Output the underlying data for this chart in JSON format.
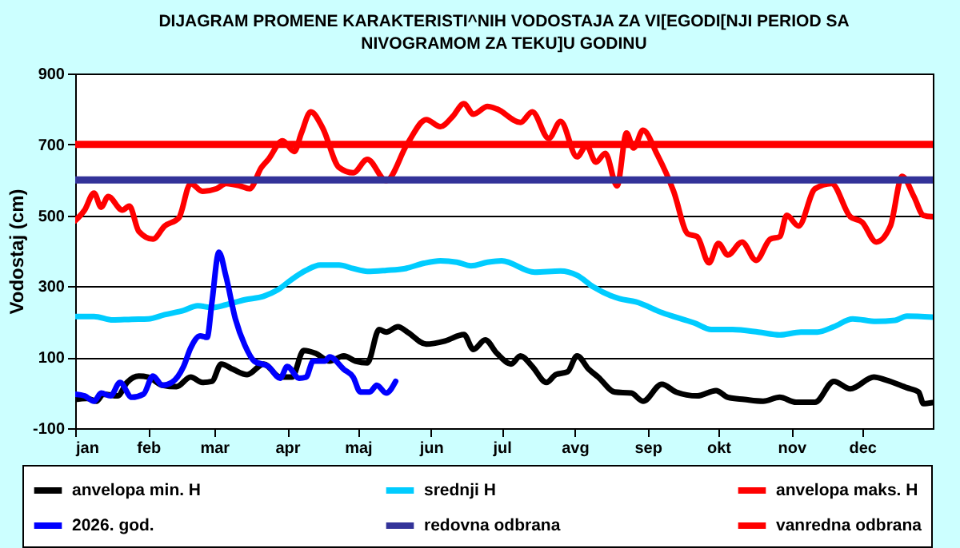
{
  "chart_data": {
    "type": "line",
    "title": "DIJAGRAM PROMENE  KARAKTERISTI^NIH  VODOSTAJA ZA VI[EGODI[NJI PERIOD  SA NIVOGRAMOM ZA TEKU]U  GODINU",
    "ylabel": "Vodostaj (cm)",
    "xlim": [
      "--01-01",
      "--12-31"
    ],
    "xticks": [
      {
        "value": "--01-01",
        "label": "jan"
      },
      {
        "value": "--02-01",
        "label": "feb"
      },
      {
        "value": "--03-01",
        "label": "mar"
      },
      {
        "value": "--04-01",
        "label": "apr"
      },
      {
        "value": "--05-01",
        "label": "maj"
      },
      {
        "value": "--06-01",
        "label": "jun"
      },
      {
        "value": "--07-01",
        "label": "jul"
      },
      {
        "value": "--08-01",
        "label": "avg"
      },
      {
        "value": "--09-01",
        "label": "sep"
      },
      {
        "value": "--10-01",
        "label": "okt"
      },
      {
        "value": "--11-01",
        "label": "nov"
      },
      {
        "value": "--12-01",
        "label": "dec"
      }
    ],
    "ylim": [
      -100,
      900
    ],
    "yticks": [
      -100,
      100,
      300,
      500,
      700,
      900
    ],
    "grid": "y",
    "legend": "bottom",
    "marker": "none",
    "line_style": "solid",
    "series": [
      {
        "name": "anvelopa min. H",
        "color": "#000000",
        "x": [
          "--01-01",
          "--01-06",
          "--01-10",
          "--01-13",
          "--01-19",
          "--01-23",
          "--01-28",
          "--02-01",
          "--02-07",
          "--02-13",
          "--02-19",
          "--02-24",
          "--02-28",
          "--03-04",
          "--03-09",
          "--03-15",
          "--03-22",
          "--03-29",
          "--04-03",
          "--04-08",
          "--04-13",
          "--04-19",
          "--04-25",
          "--04-30",
          "--05-05",
          "--05-10",
          "--05-13",
          "--05-18",
          "--05-22",
          "--05-30",
          "--06-07",
          "--06-15",
          "--06-19",
          "--06-24",
          "--06-29",
          "--07-05",
          "--07-09",
          "--07-14",
          "--07-20",
          "--07-24",
          "--07-29",
          "--08-02",
          "--08-07",
          "--08-11",
          "--08-18",
          "--08-25",
          "--08-30",
          "--09-07",
          "--09-13",
          "--09-22",
          "--09-30",
          "--10-05",
          "--10-12",
          "--10-20",
          "--10-27",
          "--11-03",
          "--11-11",
          "--11-19",
          "--11-26",
          "--12-06",
          "--12-11",
          "--12-20",
          "--12-25",
          "--12-27",
          "--12-31"
        ],
        "values": [
          -19,
          -16,
          -24,
          -4,
          -9,
          29,
          47,
          44,
          21,
          17,
          44,
          29,
          32,
          81,
          66,
          51,
          81,
          44,
          44,
          119,
          111,
          89,
          104,
          89,
          84,
          178,
          171,
          186,
          171,
          137,
          146,
          164,
          122,
          149,
          111,
          81,
          104,
          74,
          29,
          51,
          59,
          104,
          66,
          44,
          2,
          -1,
          -24,
          24,
          2,
          -9,
          6,
          -13,
          -19,
          -24,
          -13,
          -27,
          -27,
          32,
          11,
          44,
          36,
          14,
          2,
          -31,
          -28
        ]
      },
      {
        "name": "srednji H",
        "color": "#00ccff",
        "x": [
          "--01-01",
          "--01-09",
          "--01-17",
          "--01-25",
          "--02-01",
          "--02-08",
          "--02-16",
          "--02-22",
          "--02-28",
          "--03-06",
          "--03-14",
          "--03-22",
          "--03-28",
          "--04-03",
          "--04-09",
          "--04-15",
          "--04-23",
          "--04-29",
          "--05-05",
          "--05-13",
          "--05-21",
          "--05-29",
          "--06-05",
          "--06-12",
          "--06-18",
          "--06-25",
          "--07-01",
          "--07-15",
          "--07-26",
          "--08-02",
          "--08-09",
          "--08-20",
          "--08-27",
          "--09-07",
          "--09-21",
          "--09-28",
          "--10-07",
          "--10-18",
          "--10-27",
          "--11-05",
          "--11-12",
          "--11-19",
          "--11-27",
          "--12-07",
          "--12-15",
          "--12-20",
          "--12-31"
        ],
        "values": [
          215,
          215,
          205,
          207,
          208,
          220,
          232,
          245,
          240,
          248,
          262,
          272,
          290,
          320,
          345,
          360,
          360,
          350,
          342,
          345,
          350,
          365,
          372,
          368,
          358,
          368,
          372,
          340,
          343,
          331,
          298,
          265,
          256,
          226,
          196,
          178,
          178,
          171,
          163,
          171,
          171,
          186,
          208,
          201,
          204,
          216,
          213
        ]
      },
      {
        "name": "anvelopa maks. H",
        "color": "#ff0000",
        "x": [
          "--01-01",
          "--01-05",
          "--01-09",
          "--01-12",
          "--01-15",
          "--01-21",
          "--01-24",
          "--01-28",
          "--02-03",
          "--02-08",
          "--02-14",
          "--02-19",
          "--02-24",
          "--03-02",
          "--03-06",
          "--03-12",
          "--03-16",
          "--03-21",
          "--03-24",
          "--03-30",
          "--04-04",
          "--04-07",
          "--04-11",
          "--04-16",
          "--04-23",
          "--04-29",
          "--05-05",
          "--05-13",
          "--05-22",
          "--05-30",
          "--06-05",
          "--06-10",
          "--06-15",
          "--06-19",
          "--06-25",
          "--06-29",
          "--07-09",
          "--07-14",
          "--07-21",
          "--07-26",
          "--08-02",
          "--08-06",
          "--08-10",
          "--08-14",
          "--08-19",
          "--08-23",
          "--08-26",
          "--08-30",
          "--09-05",
          "--09-12",
          "--09-18",
          "--09-22",
          "--09-27",
          "--10-01",
          "--10-05",
          "--10-11",
          "--10-17",
          "--10-23",
          "--10-27",
          "--10-30",
          "--11-04",
          "--11-11",
          "--11-18",
          "--11-26",
          "--12-01",
          "--12-07",
          "--12-13",
          "--12-18",
          "--12-23",
          "--12-27",
          "--12-31"
        ],
        "values": [
          485,
          515,
          563,
          523,
          553,
          515,
          526,
          455,
          433,
          470,
          493,
          590,
          568,
          575,
          590,
          583,
          575,
          635,
          658,
          710,
          680,
          732,
          792,
          747,
          635,
          620,
          658,
          598,
          702,
          770,
          750,
          777,
          815,
          785,
          807,
          800,
          762,
          792,
          717,
          765,
          665,
          697,
          650,
          675,
          583,
          732,
          690,
          740,
          672,
          568,
          448,
          440,
          366,
          421,
          388,
          425,
          373,
          433,
          440,
          500,
          470,
          575,
          590,
          496,
          481,
          425,
          470,
          610,
          553,
          500,
          496
        ]
      },
      {
        "name": "2026. god.",
        "color": "#0000ff",
        "x": [
          "--01-01",
          "--01-05",
          "--01-09",
          "--01-12",
          "--01-16",
          "--01-20",
          "--01-25",
          "--01-30",
          "--02-03",
          "--02-07",
          "--02-11",
          "--02-16",
          "--02-19",
          "--02-23",
          "--02-26",
          "--02-28",
          "--03-03",
          "--03-06",
          "--03-10",
          "--03-14",
          "--03-18",
          "--03-24",
          "--03-29",
          "--04-01",
          "--04-06",
          "--04-09",
          "--04-12",
          "--04-17",
          "--04-19",
          "--04-25",
          "--04-29",
          "--05-02",
          "--05-06",
          "--05-09",
          "--05-13",
          "--05-17"
        ],
        "values": [
          -4,
          -9,
          -24,
          -1,
          -9,
          29,
          -13,
          -4,
          47,
          21,
          29,
          74,
          126,
          160,
          156,
          253,
          396,
          328,
          208,
          134,
          89,
          74,
          41,
          74,
          41,
          44,
          89,
          89,
          101,
          66,
          44,
          2,
          2,
          21,
          -1,
          32
        ]
      }
    ],
    "ref_lines": [
      {
        "axis": "y",
        "value": 600,
        "label": "redovna odbrana",
        "color": "#333399"
      },
      {
        "axis": "y",
        "value": 700,
        "label": "vanredna odbrana",
        "color": "#ff0000"
      }
    ]
  }
}
